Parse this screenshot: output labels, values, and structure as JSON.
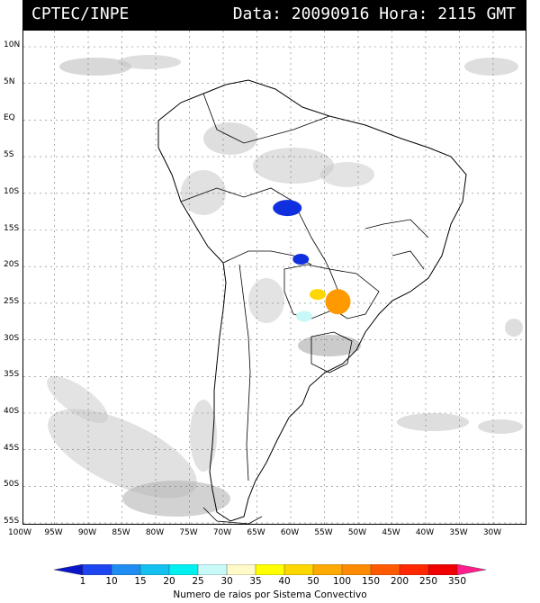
{
  "header": {
    "left": "CPTEC/INPE",
    "right": "Data: 20090916 Hora: 2115 GMT"
  },
  "map": {
    "lat_labels": [
      "10N",
      "5N",
      "EQ",
      "5S",
      "10S",
      "15S",
      "20S",
      "25S",
      "30S",
      "35S",
      "40S",
      "45S",
      "50S",
      "55S"
    ],
    "lat_values": [
      10,
      5,
      0,
      -5,
      -10,
      -15,
      -20,
      -25,
      -30,
      -35,
      -40,
      -45,
      -50,
      -55
    ],
    "lon_labels": [
      "100W",
      "95W",
      "90W",
      "85W",
      "80W",
      "75W",
      "70W",
      "65W",
      "60W",
      "55W",
      "50W",
      "45W",
      "40W",
      "35W",
      "30W"
    ],
    "lon_values": [
      -100,
      -95,
      -90,
      -85,
      -80,
      -75,
      -70,
      -65,
      -60,
      -55,
      -50,
      -45,
      -40,
      -35,
      -30
    ],
    "colors": {
      "coast": "#000000",
      "grid": "#777777",
      "cloud": "#c8c8c8",
      "cloud_dark": "#a9a9a9"
    },
    "convective_systems": [
      {
        "lat": -12.0,
        "lon": -60.5,
        "color": "#1030e0",
        "label_value": "1"
      },
      {
        "lat": -19.0,
        "lon": -58.5,
        "color": "#1030e0",
        "label_value": "1"
      },
      {
        "lat": -23.8,
        "lon": -56.0,
        "color": "#ffd700",
        "label_value": "40"
      },
      {
        "lat": -24.8,
        "lon": -53.0,
        "color": "#ff9900",
        "label_value": "150"
      },
      {
        "lat": -26.8,
        "lon": -58.0,
        "color": "#c8f8f8",
        "label_value": "30"
      }
    ]
  },
  "legend": {
    "tick_labels": [
      "1",
      "10",
      "15",
      "20",
      "25",
      "30",
      "35",
      "40",
      "50",
      "100",
      "150",
      "200",
      "250",
      "350"
    ],
    "colors": [
      "#0a14c8",
      "#1e46f0",
      "#1e8cf0",
      "#14c0f0",
      "#00f0f0",
      "#c8fafa",
      "#fffac8",
      "#ffff00",
      "#ffd700",
      "#ffaa00",
      "#ff8c00",
      "#ff5a00",
      "#ff2800",
      "#f00000",
      "#ff1e8c"
    ],
    "caption": "Numero de raios por Sistema Convectivo"
  }
}
